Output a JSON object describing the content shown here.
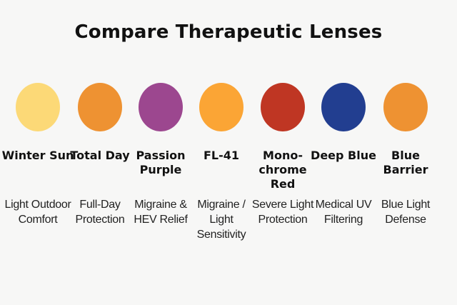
{
  "title": "Compare Therapeutic Lenses",
  "lenses": [
    {
      "name": "Winter Sun",
      "description": "Light Outdoor Comfort",
      "color": "#fcd977"
    },
    {
      "name": "Total Day",
      "description": "Full-Day Protection",
      "color": "#ee9232"
    },
    {
      "name": "Passion Purple",
      "description": "Migraine & HEV Relief",
      "color": "#9c478f"
    },
    {
      "name": "FL-41",
      "description": "Migraine / Light Sensitivity",
      "color": "#fba535"
    },
    {
      "name": "Mono- chrome Red",
      "description": "Severe Light Protection",
      "color": "#bf3623"
    },
    {
      "name": "Deep Blue",
      "description": "Medical UV Filtering",
      "color": "#223e90"
    },
    {
      "name": "Blue Barrier",
      "description": "Blue Light Defense",
      "color": "#ee9232"
    }
  ]
}
